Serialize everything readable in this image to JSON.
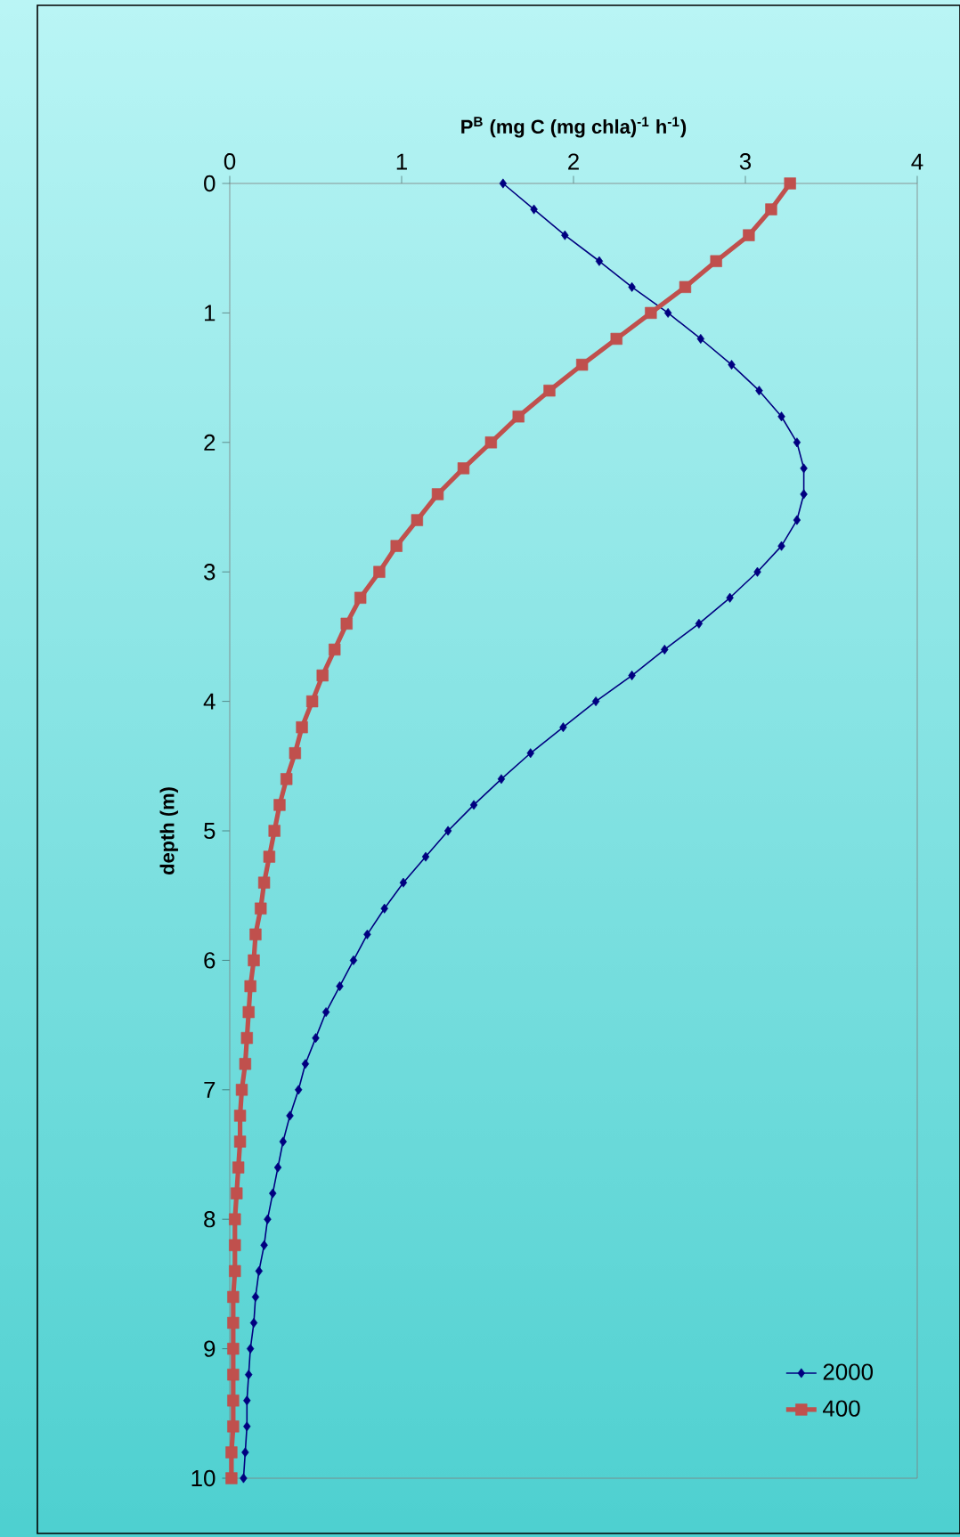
{
  "chart_data": {
    "type": "line",
    "xlabel": "P$^{B}$ (mg C (mg chla)$^{-1}$ h$^{-1}$)",
    "ylabel": "depth (m)",
    "xlim": [
      0,
      4
    ],
    "xticks": [
      0,
      1,
      2,
      3,
      4
    ],
    "ylim": [
      10,
      0
    ],
    "yticks": [
      0,
      1,
      2,
      3,
      4,
      5,
      6,
      7,
      8,
      9,
      10
    ],
    "legend": "bottom right",
    "grid": false,
    "line_style": "solid",
    "series": [
      {
        "name": "2000",
        "color": "#000080",
        "marker": "diamond",
        "x": [
          1.59,
          1.77,
          1.95,
          2.15,
          2.34,
          2.55,
          2.74,
          2.92,
          3.08,
          3.21,
          3.3,
          3.34,
          3.34,
          3.3,
          3.21,
          3.07,
          2.91,
          2.73,
          2.53,
          2.34,
          2.13,
          1.94,
          1.75,
          1.58,
          1.42,
          1.27,
          1.14,
          1.01,
          0.9,
          0.8,
          0.72,
          0.64,
          0.56,
          0.5,
          0.44,
          0.4,
          0.35,
          0.31,
          0.28,
          0.25,
          0.22,
          0.2,
          0.17,
          0.15,
          0.14,
          0.12,
          0.11,
          0.1,
          0.1,
          0.09,
          0.08
        ],
        "values": [
          0,
          0.2,
          0.4,
          0.6,
          0.8,
          1,
          1.2,
          1.4,
          1.6,
          1.8,
          2,
          2.2,
          2.4,
          2.6,
          2.8,
          3,
          3.2,
          3.4,
          3.6,
          3.8,
          4,
          4.2,
          4.4,
          4.6,
          4.8,
          5,
          5.2,
          5.4,
          5.6,
          5.8,
          6,
          6.2,
          6.4,
          6.6,
          6.8,
          7,
          7.2,
          7.4,
          7.6,
          7.8,
          8,
          8.2,
          8.4,
          8.6,
          8.8,
          9,
          9.2,
          9.4,
          9.6,
          9.8,
          10
        ]
      },
      {
        "name": "400",
        "color": "#c0504d",
        "marker": "square",
        "x": [
          3.26,
          3.15,
          3.02,
          2.83,
          2.65,
          2.45,
          2.25,
          2.05,
          1.86,
          1.68,
          1.52,
          1.36,
          1.21,
          1.09,
          0.97,
          0.87,
          0.76,
          0.68,
          0.61,
          0.54,
          0.48,
          0.42,
          0.38,
          0.33,
          0.29,
          0.26,
          0.23,
          0.2,
          0.18,
          0.15,
          0.14,
          0.12,
          0.11,
          0.1,
          0.09,
          0.07,
          0.06,
          0.06,
          0.05,
          0.04,
          0.03,
          0.03,
          0.03,
          0.02,
          0.02,
          0.02,
          0.02,
          0.02,
          0.02,
          0.01,
          0.01
        ],
        "values": [
          0,
          0.2,
          0.4,
          0.6,
          0.8,
          1,
          1.2,
          1.4,
          1.6,
          1.8,
          2,
          2.2,
          2.4,
          2.6,
          2.8,
          3,
          3.2,
          3.4,
          3.6,
          3.8,
          4,
          4.2,
          4.4,
          4.6,
          4.8,
          5,
          5.2,
          5.4,
          5.6,
          5.8,
          6,
          6.2,
          6.4,
          6.6,
          6.8,
          7,
          7.2,
          7.4,
          7.6,
          7.8,
          8,
          8.2,
          8.4,
          8.6,
          8.8,
          9,
          9.2,
          9.4,
          9.6,
          9.8,
          10
        ]
      }
    ]
  }
}
